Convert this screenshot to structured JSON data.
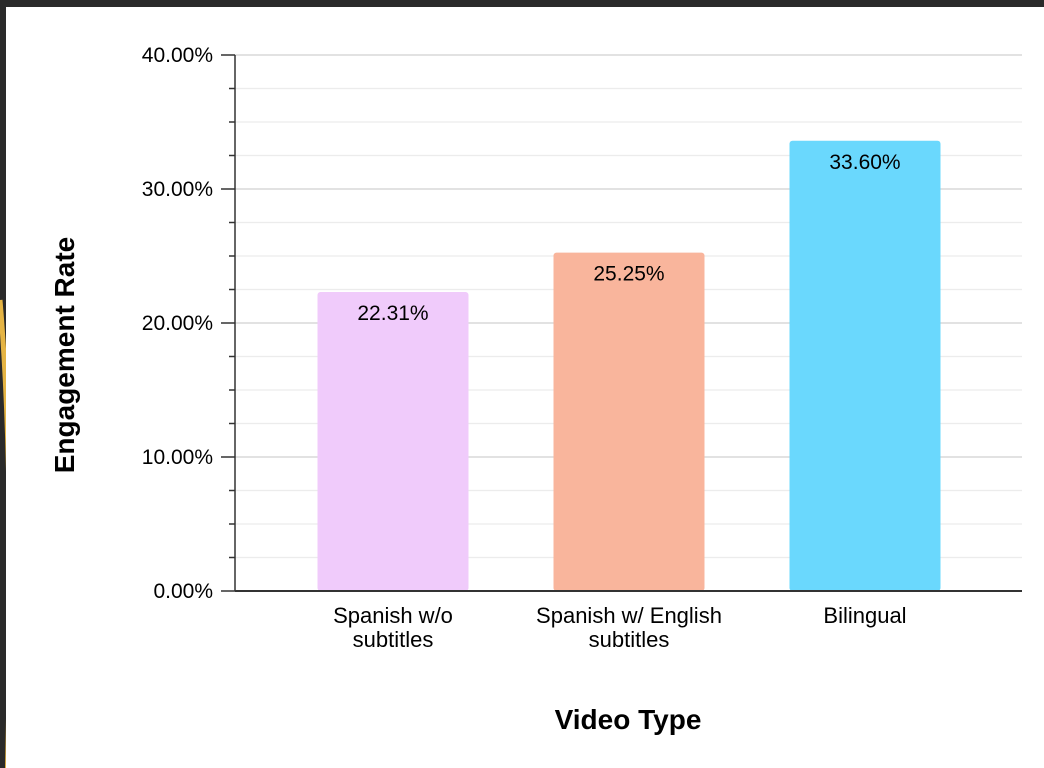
{
  "chart_data": {
    "type": "bar",
    "title": "",
    "xlabel": "Video Type",
    "ylabel": "Engagement Rate",
    "categories": [
      [
        "Spanish w/o",
        "subtitles"
      ],
      [
        "Spanish w/ English",
        "subtitles"
      ],
      [
        "Bilingual"
      ]
    ],
    "values": [
      22.31,
      25.25,
      33.6
    ],
    "data_labels": [
      "22.31%",
      "25.25%",
      "33.60%"
    ],
    "colors": [
      "#f0cbfb",
      "#f9b59c",
      "#6ad8fd"
    ],
    "ylim": [
      0,
      40
    ],
    "yticks": [
      0,
      10,
      20,
      30,
      40
    ],
    "ytick_labels": [
      "0.00%",
      "10.00%",
      "20.00%",
      "30.00%",
      "40.00%"
    ],
    "minor_ticks_per_interval": 3,
    "grid": true,
    "grid_color": "#d9d9d9",
    "legend": "none"
  }
}
